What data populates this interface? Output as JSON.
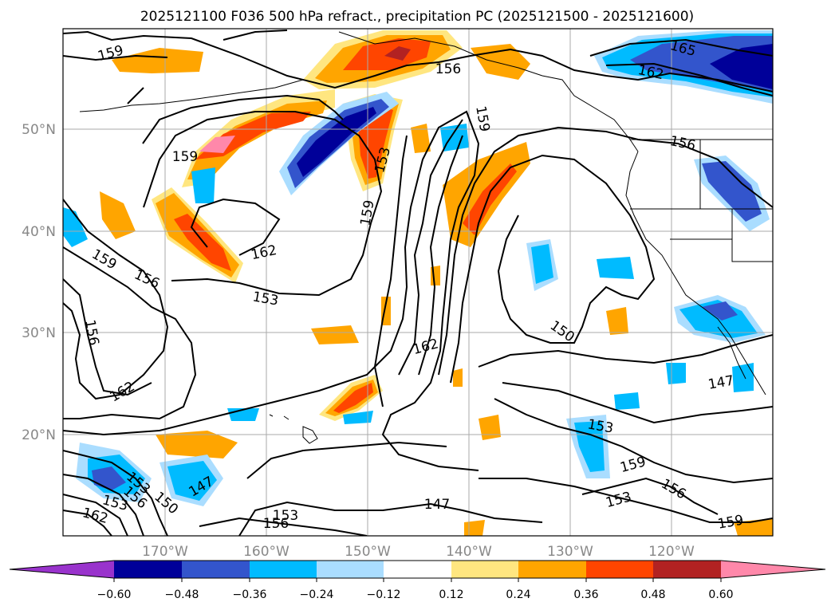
{
  "title": "2025121100 F036 500 hPa refract., precipitation PC (2025121500 - 2025121600)",
  "map": {
    "lat_labels": [
      "50°N",
      "40°N",
      "30°N",
      "20°N"
    ],
    "lon_labels": [
      "170°W",
      "160°W",
      "150°W",
      "140°W",
      "130°W",
      "120°W"
    ],
    "contour_labels": [
      "159",
      "156",
      "165",
      "162",
      "159",
      "156",
      "153",
      "159",
      "159",
      "162",
      "162",
      "159",
      "156",
      "153",
      "156",
      "162",
      "150",
      "147",
      "153",
      "159",
      "156",
      "153",
      "147",
      "153",
      "153",
      "156",
      "156",
      "162",
      "150",
      "147",
      "153",
      "159"
    ]
  },
  "colorbar": {
    "ticks": [
      "−0.60",
      "−0.48",
      "−0.36",
      "−0.24",
      "−0.12",
      "0.12",
      "0.24",
      "0.36",
      "0.48",
      "0.60"
    ],
    "colors": {
      "under": "#9933cc",
      "bins": [
        "#000099",
        "#3355cc",
        "#00bbff",
        "#aaddff",
        "#ffffff",
        "#ffe680",
        "#ffa500",
        "#ff4500",
        "#b22222",
        "#ff88aa"
      ],
      "over": "#ff88aa"
    }
  }
}
